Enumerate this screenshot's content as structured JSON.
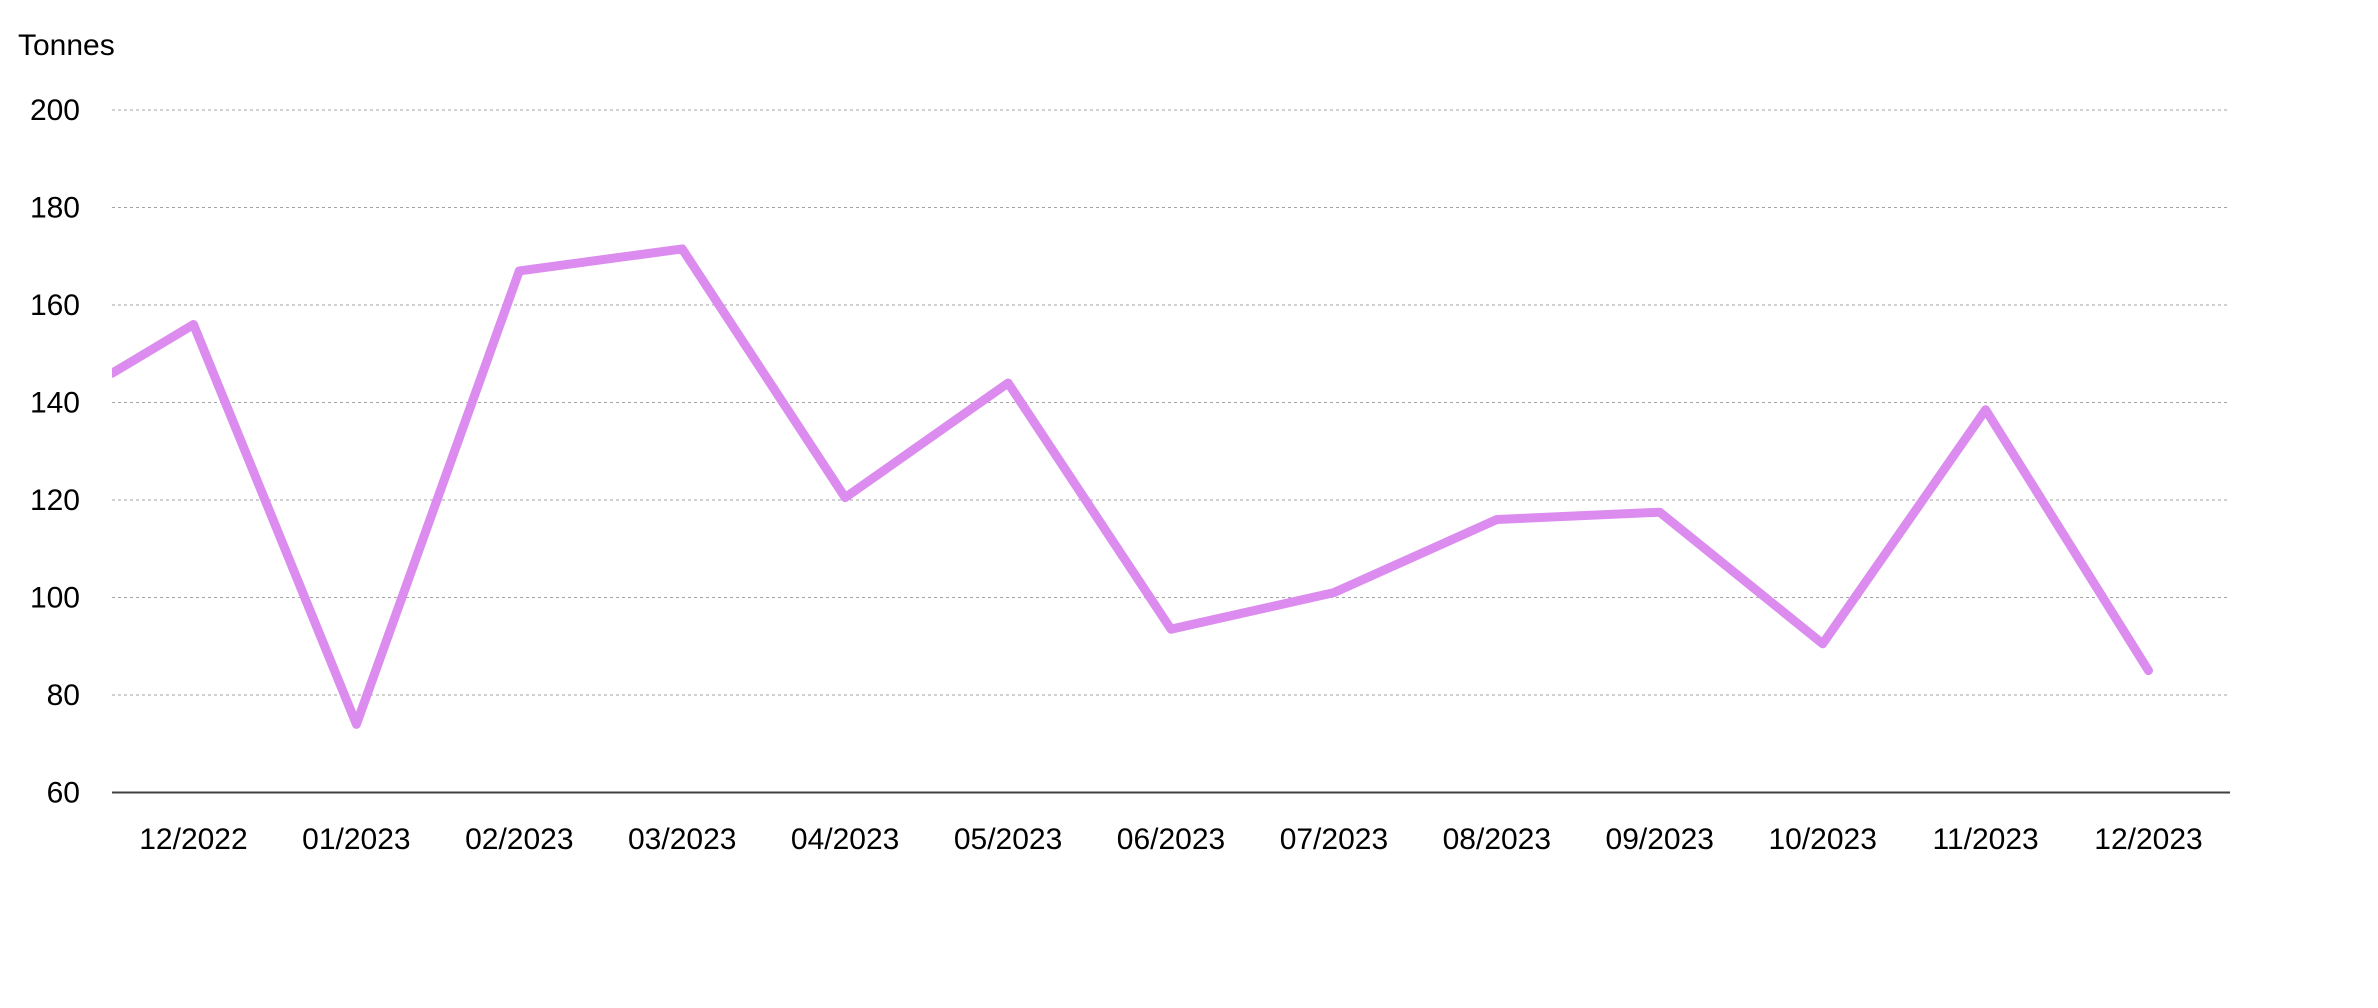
{
  "chart": {
    "y_axis_title": "Tonnes",
    "line_color": "#DB8CEE",
    "gridline_color": "#A3A3A3",
    "axis_line_color": "#404040",
    "text_color": "#000000",
    "background_color": "#FFFFFF"
  },
  "chart_data": {
    "type": "line",
    "ylabel": "Tonnes",
    "categories": [
      "12/2022",
      "01/2023",
      "02/2023",
      "03/2023",
      "04/2023",
      "05/2023",
      "06/2023",
      "07/2023",
      "08/2023",
      "09/2023",
      "10/2023",
      "11/2023",
      "12/2023"
    ],
    "series": [
      {
        "name": "Tonnes",
        "values": [
          156,
          74,
          167,
          171.5,
          120.5,
          144,
          93.5,
          101,
          116,
          117.5,
          90.5,
          138.5,
          85
        ],
        "edge_start_value": 146
      }
    ],
    "ylim": [
      60,
      200
    ],
    "yticks": [
      60,
      80,
      100,
      120,
      140,
      160,
      180,
      200
    ],
    "grid": true,
    "gridline_style": "dashed",
    "legend": false
  }
}
